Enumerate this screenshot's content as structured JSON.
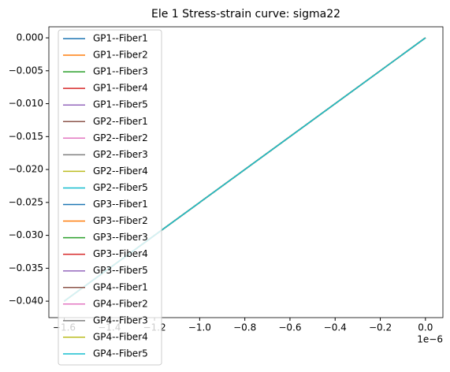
{
  "chart_data": {
    "type": "line",
    "title": "Ele 1 Stress-strain curve: sigma22",
    "x": [
      -1.6e-06,
      0
    ],
    "x_offset_label": "1e−6",
    "xlim": [
      -1.668e-06,
      7.74e-08
    ],
    "xticks": [
      {
        "value": -1.6e-06,
        "label": "−1.6"
      },
      {
        "value": -1.4e-06,
        "label": "−1.4"
      },
      {
        "value": -1.2e-06,
        "label": "−1.2"
      },
      {
        "value": -1e-06,
        "label": "−1.0"
      },
      {
        "value": -8e-07,
        "label": "−0.8"
      },
      {
        "value": -6e-07,
        "label": "−0.6"
      },
      {
        "value": -4e-07,
        "label": "−0.4"
      },
      {
        "value": -2e-07,
        "label": "−0.2"
      },
      {
        "value": 0,
        "label": "0.0"
      }
    ],
    "ylim": [
      -0.0425,
      0.00168
    ],
    "yticks": [
      {
        "value": 0,
        "label": "0.000"
      },
      {
        "value": -0.005,
        "label": "−0.005"
      },
      {
        "value": -0.01,
        "label": "−0.010"
      },
      {
        "value": -0.015,
        "label": "−0.015"
      },
      {
        "value": -0.02,
        "label": "−0.020"
      },
      {
        "value": -0.025,
        "label": "−0.025"
      },
      {
        "value": -0.03,
        "label": "−0.030"
      },
      {
        "value": -0.035,
        "label": "−0.035"
      },
      {
        "value": -0.04,
        "label": "−0.040"
      }
    ],
    "legend": "upper left",
    "series": [
      {
        "name": "GP1--Fiber1",
        "color": "#1f77b4",
        "values": [
          -0.04,
          0
        ]
      },
      {
        "name": "GP1--Fiber2",
        "color": "#ff7f0e",
        "values": [
          -0.04,
          0
        ]
      },
      {
        "name": "GP1--Fiber3",
        "color": "#2ca02c",
        "values": [
          -0.04,
          0
        ]
      },
      {
        "name": "GP1--Fiber4",
        "color": "#d62728",
        "values": [
          -0.04,
          0
        ]
      },
      {
        "name": "GP1--Fiber5",
        "color": "#9467bd",
        "values": [
          -0.04,
          0
        ]
      },
      {
        "name": "GP2--Fiber1",
        "color": "#8c564b",
        "values": [
          -0.04,
          0
        ]
      },
      {
        "name": "GP2--Fiber2",
        "color": "#e377c2",
        "values": [
          -0.04,
          0
        ]
      },
      {
        "name": "GP2--Fiber3",
        "color": "#7f7f7f",
        "values": [
          -0.04,
          0
        ]
      },
      {
        "name": "GP2--Fiber4",
        "color": "#bcbd22",
        "values": [
          -0.04,
          0
        ]
      },
      {
        "name": "GP2--Fiber5",
        "color": "#17becf",
        "values": [
          -0.04,
          0
        ]
      },
      {
        "name": "GP3--Fiber1",
        "color": "#1f77b4",
        "values": [
          -0.04,
          0
        ]
      },
      {
        "name": "GP3--Fiber2",
        "color": "#ff7f0e",
        "values": [
          -0.04,
          0
        ]
      },
      {
        "name": "GP3--Fiber3",
        "color": "#2ca02c",
        "values": [
          -0.04,
          0
        ]
      },
      {
        "name": "GP3--Fiber4",
        "color": "#d62728",
        "values": [
          -0.04,
          0
        ]
      },
      {
        "name": "GP3--Fiber5",
        "color": "#9467bd",
        "values": [
          -0.04,
          0
        ]
      },
      {
        "name": "GP4--Fiber1",
        "color": "#8c564b",
        "values": [
          -0.04,
          0
        ]
      },
      {
        "name": "GP4--Fiber2",
        "color": "#e377c2",
        "values": [
          -0.04,
          0
        ]
      },
      {
        "name": "GP4--Fiber3",
        "color": "#7f7f7f",
        "values": [
          -0.04,
          0
        ]
      },
      {
        "name": "GP4--Fiber4",
        "color": "#bcbd22",
        "values": [
          -0.04,
          0
        ]
      },
      {
        "name": "GP4--Fiber5",
        "color": "#17becf",
        "values": [
          -0.04,
          0
        ]
      }
    ]
  }
}
